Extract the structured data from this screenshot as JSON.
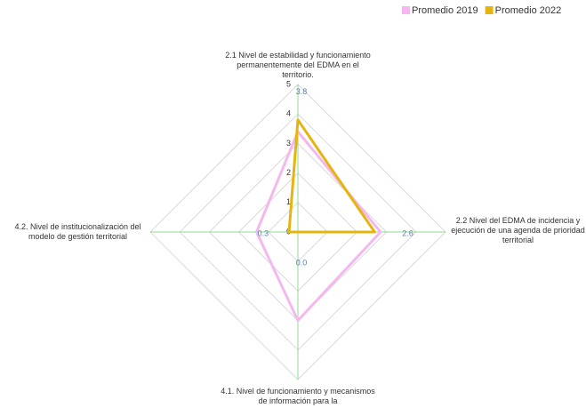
{
  "chart_data": {
    "type": "radar",
    "categories": [
      "2.1 Nivel de estabilidad y funcionamiento permanentemente del EDMA en el territorio.",
      "2.2 Nivel del EDMA de incidencia y ejecución de una agenda de prioridad territorial",
      "4.1. Nivel de funcionamiento y mecanismos de información para la",
      "4.2. Nivel de institucionalización del modelo de gestión territorial"
    ],
    "series": [
      {
        "name": "Promedio 2019",
        "color": "#f4b8ee",
        "values": [
          3.4,
          2.8,
          3.0,
          1.4
        ]
      },
      {
        "name": "Promedio 2022",
        "color": "#e6b40e",
        "values": [
          3.8,
          2.6,
          0,
          0.3
        ],
        "value_labels": [
          "3.8",
          "2.6",
          "0.0",
          "0.3"
        ]
      }
    ],
    "ylim": [
      0,
      5
    ],
    "yticks": [
      0,
      1,
      2,
      3,
      4,
      5
    ],
    "grid": true,
    "legend": "top-right"
  }
}
